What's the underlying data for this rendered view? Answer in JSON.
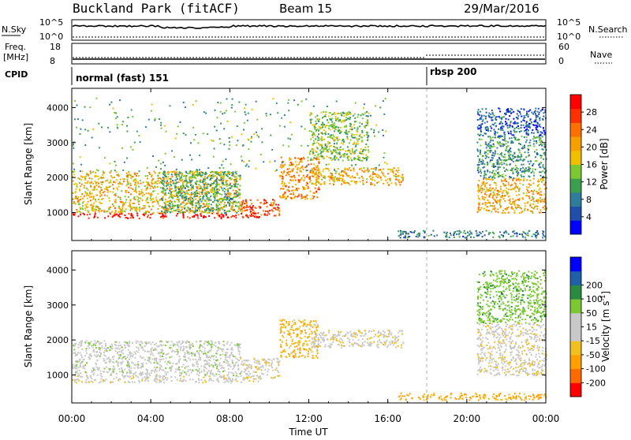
{
  "title": {
    "station": "Buckland Park (fitACF)",
    "beam": "Beam 15",
    "date": "29/Mar/2016"
  },
  "header_panels": {
    "nsky_label": "N.Sky",
    "nsky_top": "10^5",
    "nsky_bottom": "10^0",
    "nsearch_label": "N.Search",
    "nsearch_top": "10^5",
    "nsearch_bottom": "10^0",
    "freq_label_1": "Freq.",
    "freq_label_2": "[MHz]",
    "freq_top": "18",
    "freq_bottom": "8",
    "nave_label": "Nave",
    "nave_top": "60",
    "nave_bottom": "0",
    "cpid_label": "CPID",
    "cpid_segments": [
      {
        "label": "normal (fast) 151",
        "start_hour": 0
      },
      {
        "label": "rbsp 200",
        "start_hour": 18
      }
    ]
  },
  "colors": {
    "power_scale": [
      "#0000ff",
      "#1f4fa8",
      "#2f7d9a",
      "#3aa050",
      "#7cc832",
      "#f0c000",
      "#f5a000",
      "#ff7000",
      "#ff3000",
      "#ff0000"
    ],
    "velocity_scale": [
      "#ff0000",
      "#ff6a00",
      "#ffa000",
      "#f0c020",
      "#c8c8c8",
      "#c8c8c8",
      "#7cc832",
      "#2a8a40",
      "#2060a8",
      "#0000ff"
    ]
  },
  "chart_data": [
    {
      "type": "heatmap",
      "name": "power",
      "ylabel": "Slant Range [km]",
      "xlabel": "",
      "xlim": [
        0,
        24
      ],
      "ylim": [
        200,
        4550
      ],
      "x_ticks": [
        "00:00",
        "04:00",
        "08:00",
        "12:00",
        "16:00",
        "20:00",
        "00:00"
      ],
      "y_ticks": [
        1000,
        2000,
        3000,
        4000
      ],
      "colorbar": {
        "label": "Power [dB]",
        "ticks": [
          4,
          8,
          12,
          16,
          20,
          24,
          28
        ],
        "range": [
          0,
          32
        ]
      },
      "regions": [
        {
          "t": [
            0,
            9.5
          ],
          "r": [
            850,
            1000
          ],
          "value": 30
        },
        {
          "t": [
            0,
            8.5
          ],
          "r": [
            1000,
            2200
          ],
          "value": 19
        },
        {
          "t": [
            4.5,
            8.5
          ],
          "r": [
            1000,
            2200
          ],
          "value": 11
        },
        {
          "t": [
            8.5,
            10.5
          ],
          "r": [
            900,
            1400
          ],
          "value": 26
        },
        {
          "t": [
            10.5,
            12.5
          ],
          "r": [
            1400,
            2600
          ],
          "value": 22
        },
        {
          "t": [
            12,
            16.8
          ],
          "r": [
            1800,
            2300
          ],
          "value": 20
        },
        {
          "t": [
            12,
            15
          ],
          "r": [
            2500,
            3900
          ],
          "value": 14
        },
        {
          "t": [
            16.5,
            24
          ],
          "r": [
            300,
            500
          ],
          "value": 8
        },
        {
          "t": [
            20.5,
            24
          ],
          "r": [
            1000,
            2000
          ],
          "value": 20
        },
        {
          "t": [
            20.5,
            24
          ],
          "r": [
            2000,
            3200
          ],
          "value": 10
        },
        {
          "t": [
            20.5,
            24
          ],
          "r": [
            3200,
            4000
          ],
          "value": 6
        },
        {
          "t": [
            0,
            16
          ],
          "r": [
            2200,
            4300
          ],
          "value": 12
        }
      ]
    },
    {
      "type": "heatmap",
      "name": "velocity",
      "ylabel": "Slant Range [km]",
      "xlabel": "Time UT",
      "xlim": [
        0,
        24
      ],
      "ylim": [
        200,
        4550
      ],
      "x_ticks": [
        "00:00",
        "04:00",
        "08:00",
        "12:00",
        "16:00",
        "20:00",
        "00:00"
      ],
      "y_ticks": [
        1000,
        2000,
        3000,
        4000
      ],
      "colorbar": {
        "label": "Velocity [m s^-1]",
        "ticks": [
          -200,
          -100,
          -50,
          -15,
          15,
          50,
          100,
          200
        ]
      },
      "regions": [
        {
          "t": [
            0,
            9.5
          ],
          "r": [
            800,
            1000
          ],
          "value": 0
        },
        {
          "t": [
            0,
            8.5
          ],
          "r": [
            1000,
            2000
          ],
          "value": 30
        },
        {
          "t": [
            8.5,
            10.5
          ],
          "r": [
            900,
            1500
          ],
          "value": 0
        },
        {
          "t": [
            10.5,
            12.5
          ],
          "r": [
            1500,
            2600
          ],
          "value": -40
        },
        {
          "t": [
            12,
            16.8
          ],
          "r": [
            1800,
            2300
          ],
          "value": 0
        },
        {
          "t": [
            16.5,
            24
          ],
          "r": [
            300,
            500
          ],
          "value": -60
        },
        {
          "t": [
            20.5,
            24
          ],
          "r": [
            1000,
            2500
          ],
          "value": 0
        },
        {
          "t": [
            20.5,
            24
          ],
          "r": [
            2500,
            4000
          ],
          "value": 80
        }
      ]
    }
  ]
}
